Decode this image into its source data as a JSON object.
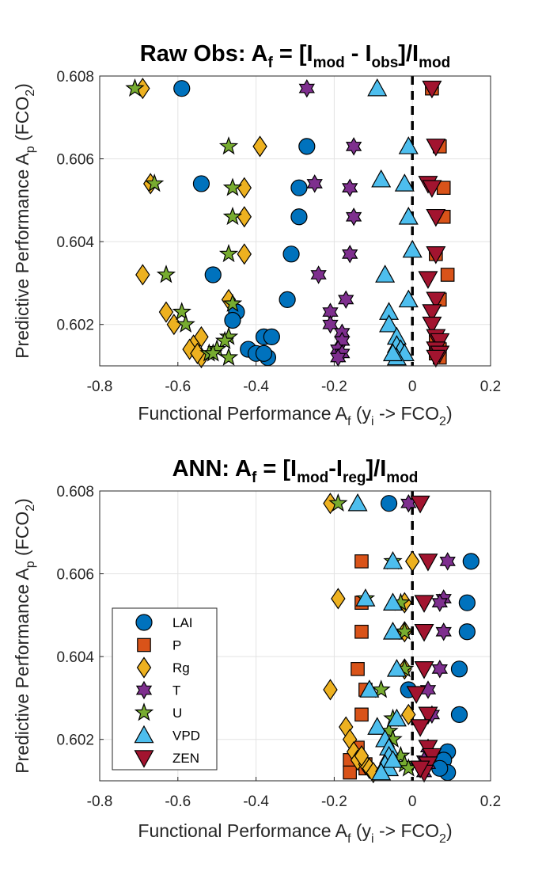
{
  "colors": {
    "LAI": "#0072BD",
    "P": "#D95319",
    "Rg": "#EDB120",
    "T": "#7E2F8E",
    "U": "#77AC30",
    "VPD": "#4DBEEE",
    "ZEN": "#A2142F"
  },
  "markers": {
    "LAI": "circle",
    "P": "square",
    "Rg": "diamond",
    "T": "hexagram",
    "U": "pentagram",
    "VPD": "triangle-up",
    "ZEN": "triangle-down"
  },
  "chart_data": [
    {
      "type": "scatter",
      "title": {
        "main": "Raw Obs: A",
        "sub_f": "f",
        "eq": " = [I",
        "sub_mod1": "mod",
        "minus": " - I",
        "sub_obs": "obs",
        "div": "]/I",
        "sub_mod2": "mod"
      },
      "xlabel": {
        "pre": "Functional Performance A",
        "sub_f": "f",
        "mid": " (y",
        "sub_i": "i",
        "arrow": " -> FCO",
        "sub_2": "2",
        "post": ")"
      },
      "ylabel": {
        "pre": "Predictive Performance A",
        "sub_p": "p",
        "mid": " (FCO",
        "sub_2": "2",
        "post": ")"
      },
      "xlim": [
        -0.8,
        0.2
      ],
      "ylim": [
        0.601,
        0.608
      ],
      "xticks": [
        "-0.8",
        "-0.6",
        "-0.4",
        "-0.2",
        "0",
        "0.2"
      ],
      "yticks": [
        "0.602",
        "0.604",
        "0.606",
        "0.608"
      ],
      "grid": true,
      "reference_line_x": 0,
      "series": [
        {
          "name": "LAI",
          "points": [
            [
              -0.59,
              0.6077
            ],
            [
              -0.27,
              0.6063
            ],
            [
              -0.54,
              0.6054
            ],
            [
              -0.29,
              0.6053
            ],
            [
              -0.29,
              0.6046
            ],
            [
              -0.31,
              0.6037
            ],
            [
              -0.51,
              0.6032
            ],
            [
              -0.32,
              0.6026
            ],
            [
              -0.45,
              0.6023
            ],
            [
              -0.46,
              0.6021
            ],
            [
              -0.38,
              0.6017
            ],
            [
              -0.36,
              0.6017
            ],
            [
              -0.42,
              0.6014
            ],
            [
              -0.4,
              0.6013
            ],
            [
              -0.37,
              0.6012
            ],
            [
              -0.38,
              0.6013
            ]
          ]
        },
        {
          "name": "P",
          "points": [
            [
              0.05,
              0.6077
            ],
            [
              0.07,
              0.6063
            ],
            [
              0.08,
              0.6053
            ],
            [
              0.08,
              0.6046
            ],
            [
              0.06,
              0.6037
            ],
            [
              0.09,
              0.6032
            ],
            [
              0.07,
              0.6026
            ],
            [
              0.06,
              0.6017
            ],
            [
              0.07,
              0.6014
            ],
            [
              0.06,
              0.6013
            ],
            [
              0.07,
              0.6012
            ]
          ]
        },
        {
          "name": "Rg",
          "points": [
            [
              -0.69,
              0.6077
            ],
            [
              -0.39,
              0.6063
            ],
            [
              -0.67,
              0.6054
            ],
            [
              -0.43,
              0.6053
            ],
            [
              -0.43,
              0.6046
            ],
            [
              -0.43,
              0.6037
            ],
            [
              -0.69,
              0.6032
            ],
            [
              -0.47,
              0.6026
            ],
            [
              -0.63,
              0.6023
            ],
            [
              -0.61,
              0.602
            ],
            [
              -0.54,
              0.6017
            ],
            [
              -0.56,
              0.6015
            ],
            [
              -0.57,
              0.6014
            ],
            [
              -0.55,
              0.6013
            ],
            [
              -0.54,
              0.6012
            ],
            [
              -0.55,
              0.6013
            ]
          ]
        },
        {
          "name": "T",
          "points": [
            [
              -0.27,
              0.6077
            ],
            [
              -0.15,
              0.6063
            ],
            [
              -0.25,
              0.6054
            ],
            [
              -0.16,
              0.6053
            ],
            [
              -0.15,
              0.6046
            ],
            [
              -0.16,
              0.6037
            ],
            [
              -0.24,
              0.6032
            ],
            [
              -0.17,
              0.6026
            ],
            [
              -0.21,
              0.6023
            ],
            [
              -0.21,
              0.602
            ],
            [
              -0.18,
              0.6018
            ],
            [
              -0.18,
              0.6016
            ],
            [
              -0.19,
              0.6014
            ],
            [
              -0.18,
              0.6013
            ],
            [
              -0.19,
              0.6012
            ]
          ]
        },
        {
          "name": "U",
          "points": [
            [
              -0.71,
              0.6077
            ],
            [
              -0.47,
              0.6063
            ],
            [
              -0.66,
              0.6054
            ],
            [
              -0.46,
              0.6053
            ],
            [
              -0.46,
              0.6046
            ],
            [
              -0.47,
              0.6037
            ],
            [
              -0.63,
              0.6032
            ],
            [
              -0.46,
              0.6025
            ],
            [
              -0.59,
              0.6023
            ],
            [
              -0.58,
              0.602
            ],
            [
              -0.47,
              0.6017
            ],
            [
              -0.48,
              0.6016
            ],
            [
              -0.5,
              0.6014
            ],
            [
              -0.52,
              0.6013
            ],
            [
              -0.47,
              0.6012
            ],
            [
              -0.51,
              0.6013
            ]
          ]
        },
        {
          "name": "VPD",
          "points": [
            [
              -0.09,
              0.6077
            ],
            [
              -0.01,
              0.6063
            ],
            [
              -0.08,
              0.6055
            ],
            [
              -0.02,
              0.6054
            ],
            [
              -0.01,
              0.6046
            ],
            [
              0.0,
              0.6038
            ],
            [
              -0.07,
              0.6032
            ],
            [
              -0.01,
              0.6026
            ],
            [
              -0.06,
              0.6023
            ],
            [
              -0.06,
              0.602
            ],
            [
              -0.04,
              0.6017
            ],
            [
              -0.04,
              0.6015
            ],
            [
              -0.03,
              0.6014
            ],
            [
              -0.02,
              0.6013
            ],
            [
              -0.04,
              0.6012
            ],
            [
              -0.05,
              0.6013
            ]
          ]
        },
        {
          "name": "ZEN",
          "points": [
            [
              0.05,
              0.6077
            ],
            [
              0.06,
              0.6063
            ],
            [
              0.04,
              0.6054
            ],
            [
              0.05,
              0.6053
            ],
            [
              0.06,
              0.6046
            ],
            [
              0.06,
              0.6037
            ],
            [
              0.04,
              0.6031
            ],
            [
              0.06,
              0.6026
            ],
            [
              0.05,
              0.6023
            ],
            [
              0.05,
              0.602
            ],
            [
              0.06,
              0.6017
            ],
            [
              0.07,
              0.6016
            ],
            [
              0.06,
              0.6014
            ],
            [
              0.07,
              0.6013
            ],
            [
              0.06,
              0.6012
            ]
          ]
        }
      ]
    },
    {
      "type": "scatter",
      "title": {
        "main": "ANN: A",
        "sub_f": "f",
        "eq": " = [I",
        "sub_mod1": "mod",
        "minus": "-I",
        "sub_obs": "reg",
        "div": "]/I",
        "sub_mod2": "mod"
      },
      "xlabel": {
        "pre": "Functional Performance A",
        "sub_f": "f",
        "mid": " (y",
        "sub_i": "i",
        "arrow": " -> FCO",
        "sub_2": "2",
        "post": ")"
      },
      "ylabel": {
        "pre": "Predictive Performance A",
        "sub_p": "p",
        "mid": " (FCO",
        "sub_2": "2",
        "post": ")"
      },
      "xlim": [
        -0.8,
        0.2
      ],
      "ylim": [
        0.601,
        0.608
      ],
      "xticks": [
        "-0.8",
        "-0.6",
        "-0.4",
        "-0.2",
        "0",
        "0.2"
      ],
      "yticks": [
        "0.602",
        "0.604",
        "0.606",
        "0.608"
      ],
      "grid": true,
      "reference_line_x": 0,
      "legend": {
        "placement": "lower-left",
        "entries": [
          "LAI",
          "P",
          "Rg",
          "T",
          "U",
          "VPD",
          "ZEN"
        ]
      },
      "series": [
        {
          "name": "LAI",
          "points": [
            [
              -0.06,
              0.6077
            ],
            [
              0.15,
              0.6063
            ],
            [
              0.14,
              0.6053
            ],
            [
              0.14,
              0.6046
            ],
            [
              0.12,
              0.6037
            ],
            [
              0.12,
              0.6026
            ],
            [
              0.09,
              0.6017
            ],
            [
              0.08,
              0.6015
            ],
            [
              0.09,
              0.6012
            ],
            [
              0.07,
              0.6013
            ],
            [
              -0.01,
              0.6032
            ]
          ]
        },
        {
          "name": "P",
          "points": [
            [
              -0.13,
              0.6063
            ],
            [
              -0.13,
              0.6053
            ],
            [
              -0.13,
              0.6046
            ],
            [
              -0.14,
              0.6037
            ],
            [
              -0.12,
              0.6032
            ],
            [
              -0.13,
              0.6026
            ],
            [
              -0.14,
              0.6018
            ],
            [
              -0.16,
              0.6015
            ],
            [
              -0.12,
              0.6014
            ],
            [
              -0.16,
              0.6012
            ],
            [
              -0.12,
              0.6013
            ]
          ]
        },
        {
          "name": "Rg",
          "points": [
            [
              -0.21,
              0.6077
            ],
            [
              0.0,
              0.6063
            ],
            [
              -0.19,
              0.6054
            ],
            [
              -0.02,
              0.6053
            ],
            [
              -0.02,
              0.6046
            ],
            [
              -0.02,
              0.6037
            ],
            [
              -0.21,
              0.6032
            ],
            [
              -0.01,
              0.6026
            ],
            [
              -0.17,
              0.6023
            ],
            [
              -0.16,
              0.602
            ],
            [
              -0.15,
              0.6017
            ],
            [
              -0.14,
              0.6015
            ],
            [
              -0.12,
              0.6014
            ],
            [
              -0.11,
              0.6013
            ],
            [
              -0.1,
              0.6012
            ],
            [
              -0.13,
              0.6016
            ]
          ]
        },
        {
          "name": "T",
          "points": [
            [
              -0.01,
              0.6077
            ],
            [
              0.09,
              0.6063
            ],
            [
              0.08,
              0.6054
            ],
            [
              0.07,
              0.6053
            ],
            [
              0.08,
              0.6046
            ],
            [
              0.07,
              0.6037
            ],
            [
              0.04,
              0.6032
            ],
            [
              0.05,
              0.6026
            ],
            [
              0.04,
              0.6018
            ],
            [
              0.03,
              0.6015
            ],
            [
              0.04,
              0.6014
            ],
            [
              0.03,
              0.6012
            ]
          ]
        },
        {
          "name": "U",
          "points": [
            [
              -0.19,
              0.6077
            ],
            [
              -0.05,
              0.6063
            ],
            [
              -0.12,
              0.6054
            ],
            [
              -0.03,
              0.6053
            ],
            [
              -0.02,
              0.6046
            ],
            [
              -0.02,
              0.6037
            ],
            [
              -0.08,
              0.6032
            ],
            [
              -0.05,
              0.6025
            ],
            [
              -0.06,
              0.6022
            ],
            [
              -0.05,
              0.602
            ],
            [
              -0.03,
              0.6016
            ],
            [
              -0.02,
              0.6014
            ],
            [
              -0.01,
              0.6013
            ]
          ]
        },
        {
          "name": "VPD",
          "points": [
            [
              -0.14,
              0.6077
            ],
            [
              -0.05,
              0.6063
            ],
            [
              -0.12,
              0.6054
            ],
            [
              -0.05,
              0.6053
            ],
            [
              -0.05,
              0.6046
            ],
            [
              -0.04,
              0.6037
            ],
            [
              -0.11,
              0.6032
            ],
            [
              -0.04,
              0.6025
            ],
            [
              -0.09,
              0.6023
            ],
            [
              -0.07,
              0.602
            ],
            [
              -0.06,
              0.6018
            ],
            [
              -0.06,
              0.6016
            ],
            [
              -0.07,
              0.6014
            ],
            [
              -0.06,
              0.6013
            ],
            [
              -0.08,
              0.6012
            ],
            [
              -0.05,
              0.6015
            ]
          ]
        },
        {
          "name": "ZEN",
          "points": [
            [
              0.02,
              0.6077
            ],
            [
              0.04,
              0.6063
            ],
            [
              0.03,
              0.6053
            ],
            [
              0.03,
              0.6046
            ],
            [
              0.03,
              0.6037
            ],
            [
              0.01,
              0.6031
            ],
            [
              0.04,
              0.6026
            ],
            [
              0.02,
              0.6023
            ],
            [
              0.04,
              0.6018
            ],
            [
              0.05,
              0.6016
            ],
            [
              0.04,
              0.6014
            ],
            [
              0.03,
              0.6012
            ],
            [
              0.02,
              0.6013
            ]
          ]
        }
      ]
    }
  ]
}
